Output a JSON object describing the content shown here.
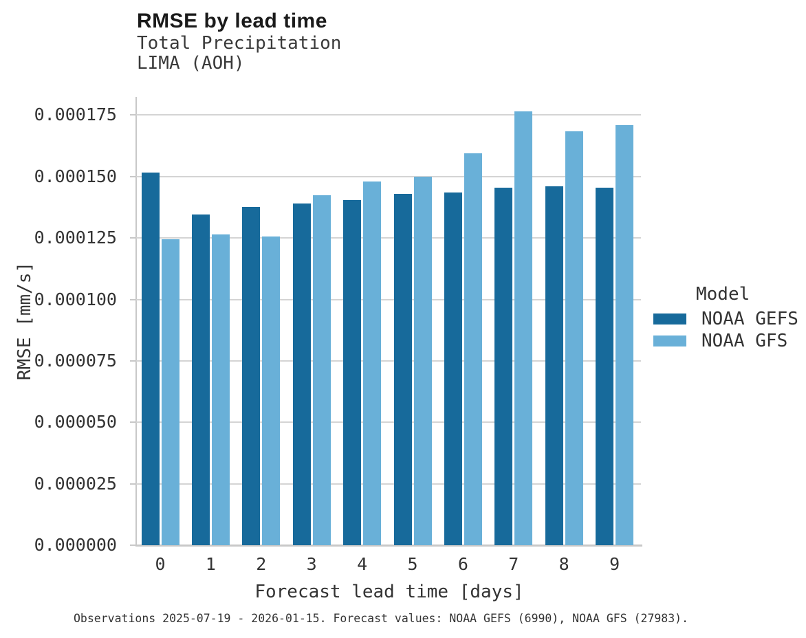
{
  "title": "RMSE by lead time",
  "subtitle": "Total Precipitation",
  "location": "LIMA (AOH)",
  "caption": "Observations 2025-07-19 - 2026-01-15. Forecast values: NOAA GEFS (6990), NOAA GFS (27983).",
  "chart_data": {
    "type": "bar",
    "title": "RMSE by lead time",
    "subtitle": "Total Precipitation",
    "location": "LIMA (AOH)",
    "xlabel": "Forecast lead time [days]",
    "ylabel": "RMSE [mm/s]",
    "categories": [
      "0",
      "1",
      "2",
      "3",
      "4",
      "5",
      "6",
      "7",
      "8",
      "9"
    ],
    "series": [
      {
        "name": "NOAA GEFS",
        "color": "#176a9b",
        "values": [
          0.0001515,
          0.0001345,
          0.0001375,
          0.000139,
          0.0001405,
          0.000143,
          0.0001435,
          0.0001455,
          0.000146,
          0.0001455
        ]
      },
      {
        "name": "NOAA GFS",
        "color": "#69b0d8",
        "values": [
          0.0001245,
          0.0001265,
          0.0001255,
          0.0001425,
          0.000148,
          0.00015,
          0.0001595,
          0.0001765,
          0.0001685,
          0.000171
        ]
      }
    ],
    "ylim": [
      0,
      0.0001824
    ],
    "yticks": [
      0,
      2.5e-05,
      5e-05,
      7.5e-05,
      0.0001,
      0.000125,
      0.00015,
      0.000175
    ],
    "ytick_labels": [
      "0.000000",
      "0.000025",
      "0.000050",
      "0.000075",
      "0.000100",
      "0.000125",
      "0.000150",
      "0.000175"
    ],
    "grid": "horizontal-only",
    "legend_title": "Model",
    "legend_position": "right"
  },
  "colors": {
    "series_dark": "#176a9b",
    "series_light": "#69b0d8",
    "gridline": "#d4d4d4",
    "spine": "#c8c8c8",
    "text": "#333333",
    "title_text": "#1a1a1a",
    "background": "#ffffff"
  }
}
